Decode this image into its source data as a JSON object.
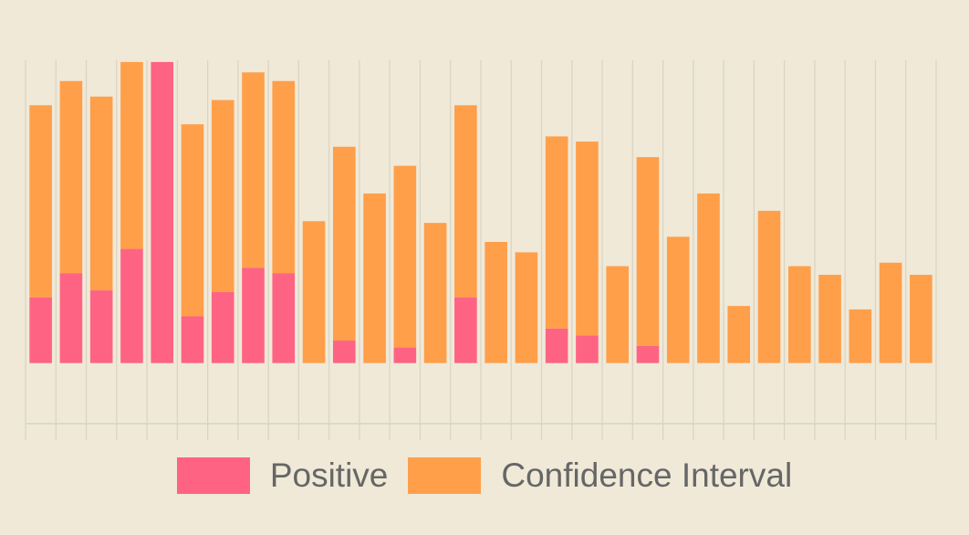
{
  "colors": {
    "background": "#f0e9d8",
    "grid": "#d8d3c4",
    "positive": "#ff6384",
    "interval": "#ff9f4a",
    "legend_text": "#666666"
  },
  "chart_data": {
    "type": "bar",
    "stacked": true,
    "grid": true,
    "legend_position": "bottom",
    "title": "",
    "xlabel": "",
    "ylabel": "",
    "categories": [
      "",
      "",
      "",
      "",
      "",
      "",
      "",
      "",
      "",
      "",
      "",
      "",
      "",
      "",
      "",
      "",
      "",
      "",
      "",
      "",
      "",
      "",
      "",
      "",
      "",
      "",
      "",
      "",
      "",
      ""
    ],
    "ylim": [
      -3.5,
      17.5
    ],
    "series": [
      {
        "name": "Positive",
        "color": "#ff6384",
        "values": [
          3.8,
          5.2,
          4.2,
          6.6,
          17.4,
          2.7,
          4.1,
          5.5,
          5.2,
          0,
          1.3,
          0,
          0.9,
          0,
          3.8,
          0,
          0,
          2.0,
          1.6,
          0,
          1.0,
          0,
          0,
          0,
          0,
          0,
          0,
          0,
          0,
          0
        ]
      },
      {
        "name": "Confidence Interval",
        "color": "#ff9f4a",
        "values": [
          11.1,
          11.1,
          11.2,
          10.8,
          0,
          11.1,
          11.1,
          11.3,
          11.1,
          8.2,
          11.2,
          9.8,
          10.5,
          8.1,
          11.1,
          7.0,
          6.4,
          11.1,
          11.2,
          5.6,
          10.9,
          7.3,
          9.8,
          3.3,
          8.8,
          5.6,
          5.1,
          3.1,
          5.8,
          5.1
        ]
      }
    ]
  }
}
